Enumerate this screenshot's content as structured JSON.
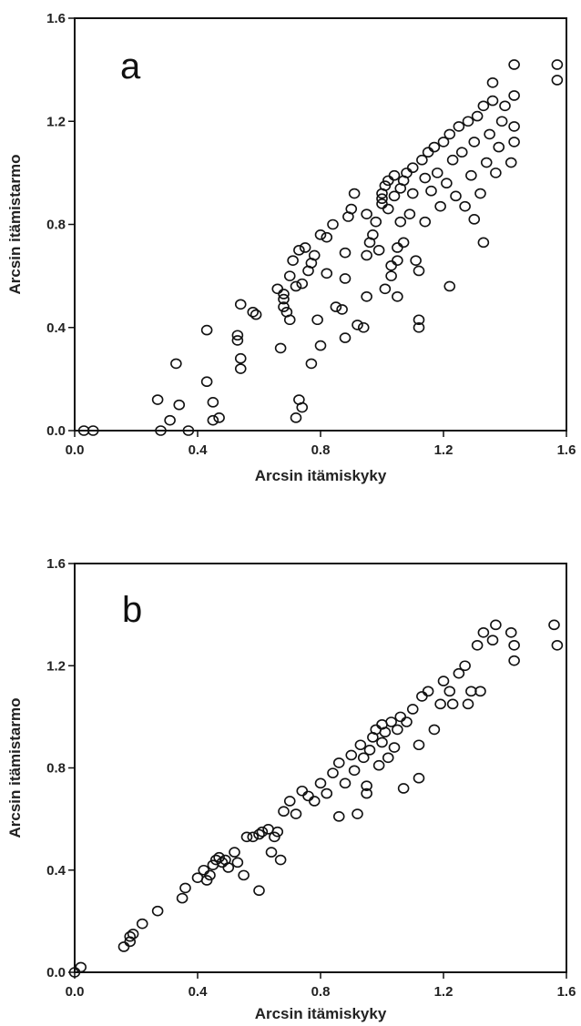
{
  "chart_data": [
    {
      "type": "scatter",
      "panel_label": "a",
      "xlabel": "Arcsin itämiskyky",
      "ylabel": "Arcsin itämistarmo",
      "xlim": [
        0.0,
        1.6
      ],
      "ylim": [
        0.0,
        1.6
      ],
      "x_ticks": [
        "0.0",
        "0.4",
        "0.8",
        "1.2",
        "1.6"
      ],
      "y_ticks": [
        "0.0",
        "0.4",
        "0.8",
        "1.2",
        "1.6"
      ],
      "marker": "open-circle",
      "grid": false,
      "points": [
        [
          0.03,
          0.0
        ],
        [
          0.06,
          0.0
        ],
        [
          0.28,
          0.0
        ],
        [
          0.37,
          0.0
        ],
        [
          0.27,
          0.12
        ],
        [
          0.31,
          0.04
        ],
        [
          0.34,
          0.1
        ],
        [
          0.33,
          0.26
        ],
        [
          0.43,
          0.19
        ],
        [
          0.43,
          0.39
        ],
        [
          0.45,
          0.11
        ],
        [
          0.45,
          0.04
        ],
        [
          0.47,
          0.05
        ],
        [
          0.53,
          0.37
        ],
        [
          0.53,
          0.35
        ],
        [
          0.54,
          0.28
        ],
        [
          0.54,
          0.24
        ],
        [
          0.54,
          0.49
        ],
        [
          0.58,
          0.46
        ],
        [
          0.59,
          0.45
        ],
        [
          0.66,
          0.55
        ],
        [
          0.67,
          0.32
        ],
        [
          0.68,
          0.53
        ],
        [
          0.68,
          0.51
        ],
        [
          0.68,
          0.48
        ],
        [
          0.69,
          0.46
        ],
        [
          0.7,
          0.43
        ],
        [
          0.7,
          0.6
        ],
        [
          0.71,
          0.66
        ],
        [
          0.72,
          0.05
        ],
        [
          0.73,
          0.12
        ],
        [
          0.74,
          0.09
        ],
        [
          0.72,
          0.56
        ],
        [
          0.74,
          0.57
        ],
        [
          0.73,
          0.7
        ],
        [
          0.75,
          0.71
        ],
        [
          0.76,
          0.62
        ],
        [
          0.77,
          0.26
        ],
        [
          0.77,
          0.65
        ],
        [
          0.78,
          0.68
        ],
        [
          0.79,
          0.43
        ],
        [
          0.8,
          0.33
        ],
        [
          0.8,
          0.76
        ],
        [
          0.82,
          0.61
        ],
        [
          0.82,
          0.75
        ],
        [
          0.84,
          0.8
        ],
        [
          0.85,
          0.48
        ],
        [
          0.87,
          0.47
        ],
        [
          0.88,
          0.36
        ],
        [
          0.88,
          0.59
        ],
        [
          0.88,
          0.69
        ],
        [
          0.89,
          0.83
        ],
        [
          0.9,
          0.86
        ],
        [
          0.91,
          0.92
        ],
        [
          0.92,
          0.41
        ],
        [
          0.94,
          0.4
        ],
        [
          0.95,
          0.52
        ],
        [
          0.95,
          0.68
        ],
        [
          0.95,
          0.84
        ],
        [
          0.96,
          0.73
        ],
        [
          0.97,
          0.76
        ],
        [
          0.98,
          0.81
        ],
        [
          0.99,
          0.7
        ],
        [
          1.0,
          0.88
        ],
        [
          1.0,
          0.9
        ],
        [
          1.0,
          0.92
        ],
        [
          1.01,
          0.55
        ],
        [
          1.01,
          0.95
        ],
        [
          1.02,
          0.97
        ],
        [
          1.02,
          0.86
        ],
        [
          1.03,
          0.6
        ],
        [
          1.03,
          0.64
        ],
        [
          1.04,
          0.99
        ],
        [
          1.04,
          0.91
        ],
        [
          1.05,
          0.52
        ],
        [
          1.05,
          0.66
        ],
        [
          1.05,
          0.71
        ],
        [
          1.06,
          0.81
        ],
        [
          1.06,
          0.94
        ],
        [
          1.07,
          0.73
        ],
        [
          1.07,
          0.97
        ],
        [
          1.08,
          1.0
        ],
        [
          1.09,
          0.84
        ],
        [
          1.1,
          0.92
        ],
        [
          1.1,
          1.02
        ],
        [
          1.11,
          0.66
        ],
        [
          1.12,
          0.4
        ],
        [
          1.12,
          0.43
        ],
        [
          1.12,
          0.62
        ],
        [
          1.13,
          1.05
        ],
        [
          1.14,
          0.98
        ],
        [
          1.14,
          0.81
        ],
        [
          1.15,
          1.08
        ],
        [
          1.16,
          0.93
        ],
        [
          1.17,
          1.1
        ],
        [
          1.18,
          1.0
        ],
        [
          1.19,
          0.87
        ],
        [
          1.2,
          1.12
        ],
        [
          1.21,
          0.96
        ],
        [
          1.22,
          0.56
        ],
        [
          1.22,
          1.15
        ],
        [
          1.23,
          1.05
        ],
        [
          1.24,
          0.91
        ],
        [
          1.25,
          1.18
        ],
        [
          1.26,
          1.08
        ],
        [
          1.27,
          0.87
        ],
        [
          1.28,
          1.2
        ],
        [
          1.29,
          0.99
        ],
        [
          1.3,
          0.82
        ],
        [
          1.3,
          1.12
        ],
        [
          1.31,
          1.22
        ],
        [
          1.32,
          0.92
        ],
        [
          1.33,
          1.26
        ],
        [
          1.33,
          0.73
        ],
        [
          1.34,
          1.04
        ],
        [
          1.35,
          1.15
        ],
        [
          1.36,
          1.28
        ],
        [
          1.36,
          1.35
        ],
        [
          1.37,
          1.0
        ],
        [
          1.38,
          1.1
        ],
        [
          1.39,
          1.2
        ],
        [
          1.4,
          1.26
        ],
        [
          1.42,
          1.04
        ],
        [
          1.43,
          1.42
        ],
        [
          1.43,
          1.3
        ],
        [
          1.43,
          1.18
        ],
        [
          1.43,
          1.12
        ],
        [
          1.57,
          1.42
        ],
        [
          1.57,
          1.36
        ]
      ]
    },
    {
      "type": "scatter",
      "panel_label": "b",
      "xlabel": "Arcsin itämiskyky",
      "ylabel": "Arcsin itämistarmo",
      "xlim": [
        0.0,
        1.6
      ],
      "ylim": [
        0.0,
        1.6
      ],
      "x_ticks": [
        "0.0",
        "0.4",
        "0.8",
        "1.2",
        "1.6"
      ],
      "y_ticks": [
        "0.0",
        "0.4",
        "0.8",
        "1.2",
        "1.6"
      ],
      "marker": "open-circle",
      "grid": false,
      "points": [
        [
          0.0,
          0.0
        ],
        [
          0.02,
          0.02
        ],
        [
          0.16,
          0.1
        ],
        [
          0.18,
          0.12
        ],
        [
          0.18,
          0.14
        ],
        [
          0.19,
          0.15
        ],
        [
          0.22,
          0.19
        ],
        [
          0.27,
          0.24
        ],
        [
          0.35,
          0.29
        ],
        [
          0.36,
          0.33
        ],
        [
          0.4,
          0.37
        ],
        [
          0.42,
          0.4
        ],
        [
          0.43,
          0.36
        ],
        [
          0.44,
          0.38
        ],
        [
          0.45,
          0.42
        ],
        [
          0.46,
          0.44
        ],
        [
          0.47,
          0.45
        ],
        [
          0.48,
          0.43
        ],
        [
          0.49,
          0.44
        ],
        [
          0.5,
          0.41
        ],
        [
          0.52,
          0.47
        ],
        [
          0.53,
          0.43
        ],
        [
          0.55,
          0.38
        ],
        [
          0.56,
          0.53
        ],
        [
          0.58,
          0.53
        ],
        [
          0.6,
          0.32
        ],
        [
          0.6,
          0.54
        ],
        [
          0.61,
          0.55
        ],
        [
          0.63,
          0.56
        ],
        [
          0.64,
          0.47
        ],
        [
          0.65,
          0.53
        ],
        [
          0.66,
          0.55
        ],
        [
          0.67,
          0.44
        ],
        [
          0.68,
          0.63
        ],
        [
          0.7,
          0.67
        ],
        [
          0.72,
          0.62
        ],
        [
          0.74,
          0.71
        ],
        [
          0.76,
          0.69
        ],
        [
          0.78,
          0.67
        ],
        [
          0.8,
          0.74
        ],
        [
          0.82,
          0.7
        ],
        [
          0.84,
          0.78
        ],
        [
          0.86,
          0.61
        ],
        [
          0.86,
          0.82
        ],
        [
          0.88,
          0.74
        ],
        [
          0.9,
          0.85
        ],
        [
          0.91,
          0.79
        ],
        [
          0.92,
          0.62
        ],
        [
          0.93,
          0.89
        ],
        [
          0.94,
          0.84
        ],
        [
          0.95,
          0.7
        ],
        [
          0.95,
          0.73
        ],
        [
          0.96,
          0.87
        ],
        [
          0.97,
          0.92
        ],
        [
          0.98,
          0.95
        ],
        [
          0.99,
          0.81
        ],
        [
          1.0,
          0.97
        ],
        [
          1.0,
          0.9
        ],
        [
          1.01,
          0.94
        ],
        [
          1.02,
          0.84
        ],
        [
          1.03,
          0.98
        ],
        [
          1.04,
          0.88
        ],
        [
          1.05,
          0.95
        ],
        [
          1.06,
          1.0
        ],
        [
          1.07,
          0.72
        ],
        [
          1.08,
          0.98
        ],
        [
          1.1,
          1.03
        ],
        [
          1.12,
          0.89
        ],
        [
          1.12,
          0.76
        ],
        [
          1.13,
          1.08
        ],
        [
          1.15,
          1.1
        ],
        [
          1.17,
          0.95
        ],
        [
          1.19,
          1.05
        ],
        [
          1.2,
          1.14
        ],
        [
          1.22,
          1.1
        ],
        [
          1.23,
          1.05
        ],
        [
          1.25,
          1.17
        ],
        [
          1.27,
          1.2
        ],
        [
          1.28,
          1.05
        ],
        [
          1.29,
          1.1
        ],
        [
          1.31,
          1.28
        ],
        [
          1.32,
          1.1
        ],
        [
          1.33,
          1.33
        ],
        [
          1.36,
          1.3
        ],
        [
          1.37,
          1.36
        ],
        [
          1.42,
          1.33
        ],
        [
          1.43,
          1.28
        ],
        [
          1.43,
          1.22
        ],
        [
          1.56,
          1.36
        ],
        [
          1.57,
          1.28
        ]
      ]
    }
  ]
}
